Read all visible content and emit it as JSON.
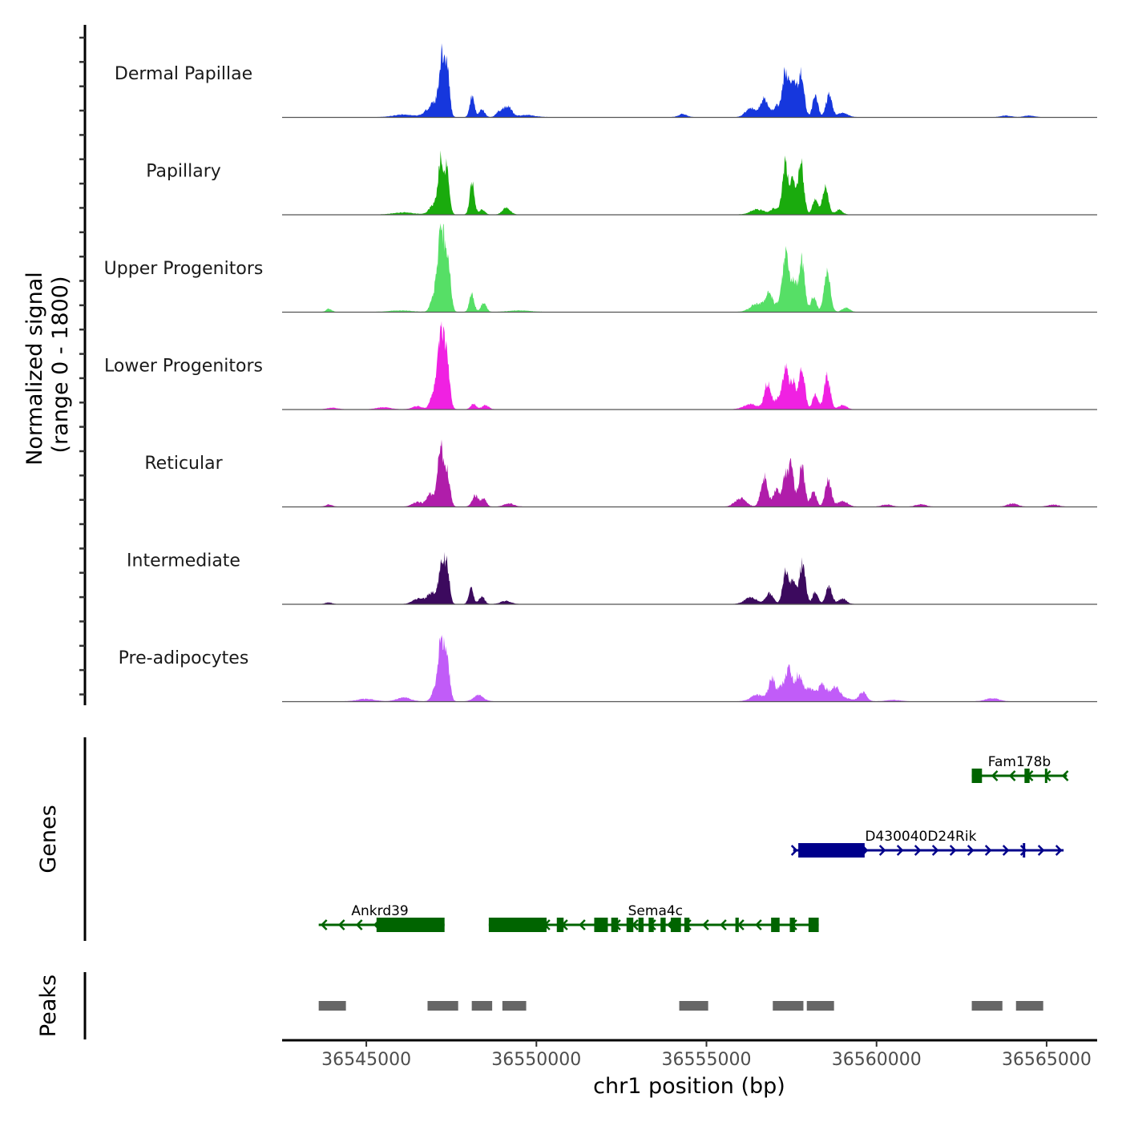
{
  "chart_data": {
    "type": "area",
    "title": "",
    "xlabel": "chr1 position (bp)",
    "ylabel_lines": [
      "Normalized signal",
      "(range 0 - 1800)"
    ],
    "chromosome": "chr1",
    "xlim": [
      36542524,
      36566486
    ],
    "ylim": [
      0,
      1800
    ],
    "x_ticks": [
      36545000,
      36550000,
      36555000,
      36560000,
      36565000
    ],
    "x_tick_labels": [
      "36545000",
      "36550000",
      "36555000",
      "36560000",
      "36565000"
    ],
    "tracks": [
      {
        "name": "Dermal Papillae",
        "color": "#1637DD",
        "peaks": [
          [
            36547220,
            1030,
            80
          ],
          [
            36547380,
            880,
            70
          ],
          [
            36547000,
            280,
            200
          ],
          [
            36548110,
            410,
            70
          ],
          [
            36548400,
            150,
            80
          ],
          [
            36549150,
            220,
            120
          ],
          [
            36548900,
            100,
            90
          ],
          [
            36546100,
            50,
            300
          ],
          [
            36549700,
            40,
            250
          ],
          [
            36554300,
            60,
            120
          ],
          [
            36556300,
            180,
            150
          ],
          [
            36556700,
            380,
            110
          ],
          [
            36557050,
            220,
            90
          ],
          [
            36557320,
            880,
            90
          ],
          [
            36557540,
            620,
            90
          ],
          [
            36557780,
            860,
            90
          ],
          [
            36558200,
            410,
            80
          ],
          [
            36558600,
            430,
            90
          ],
          [
            36559000,
            80,
            150
          ],
          [
            36563800,
            30,
            150
          ],
          [
            36564500,
            30,
            150
          ]
        ]
      },
      {
        "name": "Papillary",
        "color": "#1AAB0D",
        "peaks": [
          [
            36547200,
            1020,
            80
          ],
          [
            36547380,
            860,
            70
          ],
          [
            36547000,
            200,
            140
          ],
          [
            36548110,
            620,
            70
          ],
          [
            36548400,
            100,
            80
          ],
          [
            36549120,
            140,
            110
          ],
          [
            36546100,
            40,
            300
          ],
          [
            36556500,
            100,
            200
          ],
          [
            36557000,
            120,
            100
          ],
          [
            36557320,
            1010,
            90
          ],
          [
            36557550,
            620,
            80
          ],
          [
            36557780,
            1000,
            85
          ],
          [
            36558200,
            330,
            80
          ],
          [
            36558500,
            520,
            90
          ],
          [
            36558900,
            90,
            100
          ]
        ]
      },
      {
        "name": "Upper Progenitors",
        "color": "#56DF66",
        "peaks": [
          [
            36547200,
            1560,
            110
          ],
          [
            36547400,
            900,
            80
          ],
          [
            36546950,
            200,
            90
          ],
          [
            36548100,
            370,
            70
          ],
          [
            36548450,
            180,
            80
          ],
          [
            36543900,
            60,
            80
          ],
          [
            36546000,
            30,
            300
          ],
          [
            36549500,
            30,
            300
          ],
          [
            36556500,
            160,
            200
          ],
          [
            36556850,
            340,
            110
          ],
          [
            36557150,
            160,
            90
          ],
          [
            36557330,
            1070,
            90
          ],
          [
            36557550,
            640,
            80
          ],
          [
            36557800,
            1030,
            90
          ],
          [
            36558150,
            300,
            80
          ],
          [
            36558550,
            830,
            90
          ],
          [
            36559100,
            80,
            110
          ]
        ]
      },
      {
        "name": "Lower Progenitors",
        "color": "#F021E2",
        "peaks": [
          [
            36547200,
            1530,
            110
          ],
          [
            36547380,
            700,
            80
          ],
          [
            36546950,
            230,
            90
          ],
          [
            36548150,
            110,
            80
          ],
          [
            36548500,
            80,
            100
          ],
          [
            36545500,
            40,
            200
          ],
          [
            36546500,
            60,
            150
          ],
          [
            36556300,
            100,
            200
          ],
          [
            36556800,
            510,
            100
          ],
          [
            36557100,
            200,
            90
          ],
          [
            36557330,
            770,
            90
          ],
          [
            36557550,
            500,
            80
          ],
          [
            36557800,
            780,
            90
          ],
          [
            36558200,
            300,
            80
          ],
          [
            36558550,
            640,
            90
          ],
          [
            36559000,
            80,
            120
          ],
          [
            36544000,
            30,
            150
          ]
        ]
      },
      {
        "name": "Reticular",
        "color": "#B01DAA",
        "peaks": [
          [
            36547180,
            1130,
            90
          ],
          [
            36547380,
            640,
            80
          ],
          [
            36546870,
            250,
            100
          ],
          [
            36546500,
            90,
            150
          ],
          [
            36548200,
            220,
            90
          ],
          [
            36548450,
            160,
            80
          ],
          [
            36549200,
            60,
            150
          ],
          [
            36556000,
            170,
            160
          ],
          [
            36556700,
            590,
            100
          ],
          [
            36557050,
            310,
            90
          ],
          [
            36557320,
            620,
            90
          ],
          [
            36557500,
            800,
            70
          ],
          [
            36557800,
            800,
            90
          ],
          [
            36558150,
            300,
            80
          ],
          [
            36558580,
            520,
            90
          ],
          [
            36559000,
            110,
            150
          ],
          [
            36560300,
            40,
            150
          ],
          [
            36561300,
            50,
            140
          ],
          [
            36564000,
            60,
            150
          ],
          [
            36565200,
            40,
            150
          ],
          [
            36543900,
            40,
            100
          ]
        ]
      },
      {
        "name": "Intermediate",
        "color": "#3C0A5E",
        "peaks": [
          [
            36547220,
            800,
            80
          ],
          [
            36547380,
            700,
            70
          ],
          [
            36546950,
            230,
            160
          ],
          [
            36546500,
            100,
            150
          ],
          [
            36548080,
            300,
            70
          ],
          [
            36548400,
            150,
            80
          ],
          [
            36549100,
            60,
            150
          ],
          [
            36556300,
            130,
            180
          ],
          [
            36556850,
            210,
            110
          ],
          [
            36557330,
            650,
            90
          ],
          [
            36557550,
            440,
            80
          ],
          [
            36557820,
            800,
            90
          ],
          [
            36558200,
            240,
            80
          ],
          [
            36558600,
            350,
            90
          ],
          [
            36559000,
            100,
            120
          ],
          [
            36543900,
            30,
            100
          ]
        ]
      },
      {
        "name": "Pre-adipocytes",
        "color": "#C15CF8",
        "peaks": [
          [
            36547200,
            1160,
            90
          ],
          [
            36547380,
            700,
            80
          ],
          [
            36547000,
            180,
            100
          ],
          [
            36548300,
            120,
            150
          ],
          [
            36546100,
            80,
            200
          ],
          [
            36545000,
            50,
            250
          ],
          [
            36556500,
            130,
            200
          ],
          [
            36556930,
            440,
            100
          ],
          [
            36557200,
            280,
            90
          ],
          [
            36557420,
            650,
            90
          ],
          [
            36557700,
            480,
            110
          ],
          [
            36558000,
            220,
            150
          ],
          [
            36558400,
            250,
            120
          ],
          [
            36558800,
            180,
            130
          ],
          [
            36559600,
            170,
            110
          ],
          [
            36558700,
            100,
            400
          ],
          [
            36563400,
            60,
            200
          ],
          [
            36560500,
            30,
            200
          ]
        ]
      }
    ],
    "gene_track": {
      "label": "Genes",
      "genes": [
        {
          "name": "Fam178b",
          "strand": "-",
          "color": "#006400",
          "start": 36562800,
          "end": 36565600,
          "exons": [
            [
              36562800,
              36563100
            ],
            [
              36564350,
              36564500
            ],
            [
              36564950,
              36565000
            ]
          ],
          "row": 0
        },
        {
          "name": "D430040D24Rik",
          "strand": "+",
          "color": "#00008B",
          "start": 36557550,
          "end": 36565500,
          "exons": [
            [
              36557700,
              36559650
            ],
            [
              36564300,
              36564340
            ]
          ],
          "row": 1
        },
        {
          "name": "Ankrd39",
          "strand": "-",
          "color": "#006400",
          "start": 36543600,
          "end": 36547300,
          "exons": [
            [
              36545300,
              36547300
            ]
          ],
          "label_x": 36545400,
          "row": 2
        },
        {
          "name": "Sema4c",
          "strand": "-",
          "color": "#006400",
          "start": 36548600,
          "end": 36558300,
          "exons": [
            [
              36548600,
              36550300
            ],
            [
              36550600,
              36550800
            ],
            [
              36551700,
              36552100
            ],
            [
              36552200,
              36552400
            ],
            [
              36552650,
              36552850
            ],
            [
              36553000,
              36553150
            ],
            [
              36553300,
              36553450
            ],
            [
              36553650,
              36553800
            ],
            [
              36553950,
              36554250
            ],
            [
              36554350,
              36554500
            ],
            [
              36555850,
              36555950
            ],
            [
              36556900,
              36557150
            ],
            [
              36557450,
              36557600
            ],
            [
              36558000,
              36558300
            ]
          ],
          "label_x": 36553500,
          "row": 2
        }
      ]
    },
    "peak_track": {
      "label": "Peaks",
      "color": "#666666",
      "regions": [
        [
          36543600,
          36544400
        ],
        [
          36546800,
          36547700
        ],
        [
          36548100,
          36548700
        ],
        [
          36549000,
          36549700
        ],
        [
          36554200,
          36555050
        ],
        [
          36556950,
          36557850
        ],
        [
          36557950,
          36558750
        ],
        [
          36562800,
          36563700
        ],
        [
          36564100,
          36564900
        ]
      ]
    }
  }
}
